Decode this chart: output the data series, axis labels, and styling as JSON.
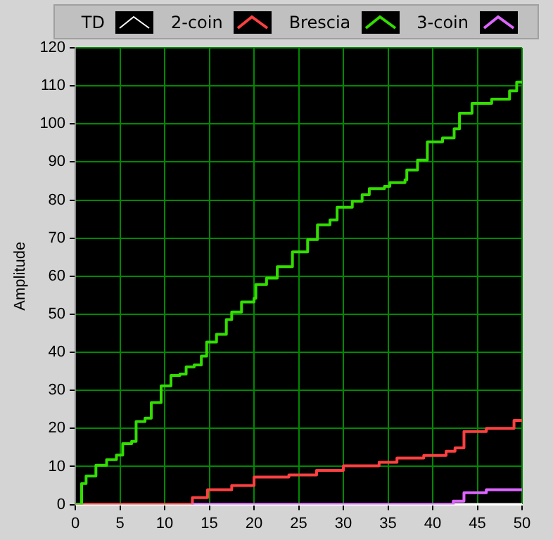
{
  "chart_data": {
    "type": "step",
    "ylabel": "Amplitude",
    "xlim": [
      0,
      50
    ],
    "ylim": [
      0,
      120
    ],
    "xticks": [
      0,
      5,
      10,
      15,
      20,
      25,
      30,
      35,
      40,
      45,
      50
    ],
    "yticks": [
      0,
      10,
      20,
      30,
      40,
      50,
      60,
      70,
      80,
      90,
      100,
      110,
      120
    ],
    "grid": true,
    "legend": "top",
    "marker": "none",
    "line_style": "solid",
    "series": [
      {
        "name": "TD",
        "color": "#ffffff",
        "x": [
          0,
          50
        ],
        "values": [
          0,
          0
        ]
      },
      {
        "name": "2-coin",
        "color": "#ff4040",
        "x": [
          0,
          13.1,
          14.8,
          17.5,
          20,
          23.9,
          27,
          30,
          34,
          36,
          39,
          41.5,
          42.5,
          43.5,
          46,
          49.1,
          50
        ],
        "values": [
          0,
          1.8,
          3.9,
          5,
          7.2,
          7.8,
          9,
          10.2,
          11.1,
          12.2,
          12.9,
          14,
          14.9,
          19.2,
          20,
          22.1,
          22.1
        ]
      },
      {
        "name": "Brescia",
        "color": "#33dd00",
        "x": [
          0,
          0.2,
          0.7,
          1.2,
          2.3,
          3.5,
          4.6,
          5.3,
          6.3,
          6.8,
          7.8,
          8.5,
          9.6,
          10.7,
          11.7,
          12.4,
          13.3,
          14.1,
          14.7,
          15.8,
          16.9,
          17.5,
          18.6,
          20,
          20.2,
          21.4,
          22.6,
          24.3,
          26,
          27.1,
          28.5,
          29.3,
          31,
          32.1,
          32.9,
          34.6,
          35.2,
          36.9,
          37.1,
          38.3,
          39.4,
          41.1,
          42.4,
          43,
          44.4,
          46.6,
          48.6,
          49.4,
          50
        ],
        "values": [
          0,
          0,
          5.5,
          7.5,
          10.3,
          11.8,
          13,
          16,
          16.6,
          21.8,
          22.7,
          26.8,
          31.2,
          33.9,
          34.3,
          36.2,
          36.7,
          39,
          42.7,
          44.7,
          48.6,
          50.6,
          53.2,
          54.2,
          57.8,
          59.5,
          62.5,
          66.4,
          69.6,
          73.5,
          74.8,
          78.1,
          79.7,
          81.4,
          83,
          83.6,
          84.6,
          85.3,
          87.9,
          90.5,
          95.3,
          96.3,
          98.7,
          102.8,
          105.4,
          106.5,
          108.7,
          111,
          111
        ]
      },
      {
        "name": "3-coin",
        "color": "#dd66ff",
        "x": [
          13,
          42.3,
          43.5,
          46,
          50
        ],
        "values": [
          0,
          0.9,
          3.1,
          3.9,
          3.9
        ]
      }
    ]
  }
}
